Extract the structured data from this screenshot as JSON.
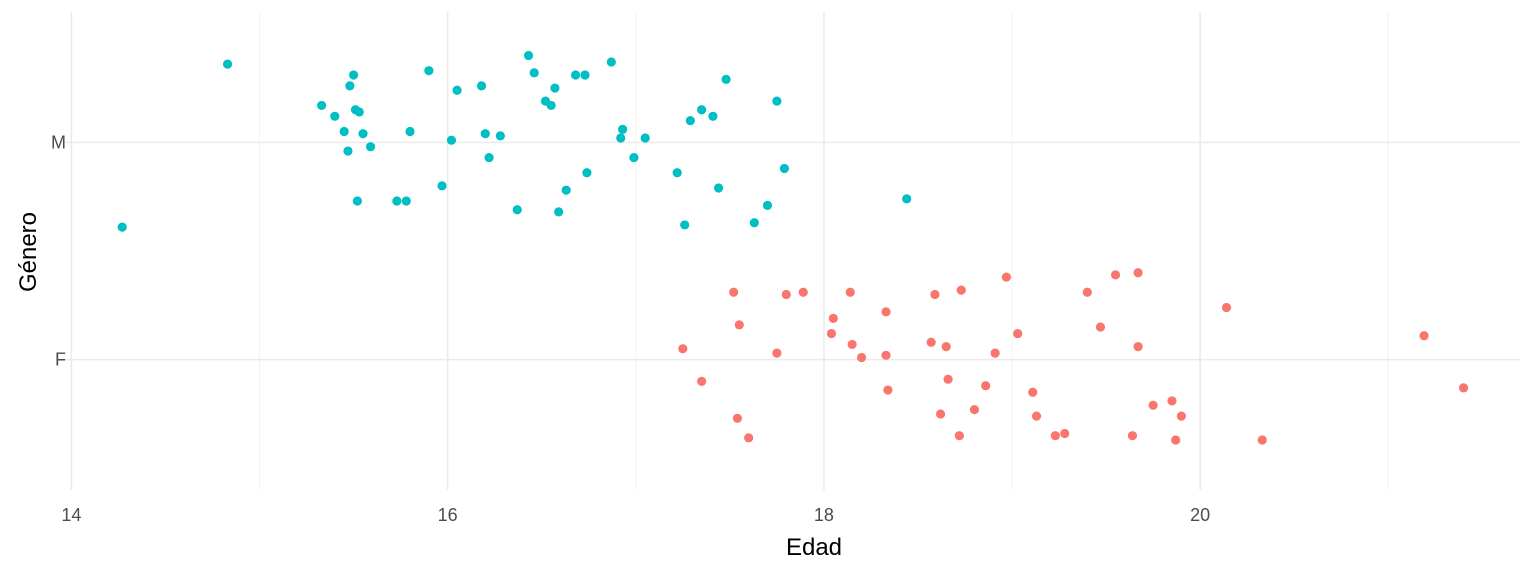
{
  "chart_data": {
    "type": "scatter",
    "title": "",
    "xlabel": "Edad",
    "ylabel": "Género",
    "xlim": [
      13.95,
      21.7
    ],
    "ylim": [
      0.4,
      2.6
    ],
    "x_ticks": [
      14,
      16,
      18,
      20
    ],
    "x_tick_labels": [
      "14",
      "16",
      "18",
      "20"
    ],
    "y_ticks": [
      1,
      2
    ],
    "y_tick_labels": [
      "F",
      "M"
    ],
    "grid": true,
    "legend": "none",
    "series": [
      {
        "color": "#00BFC4",
        "category": "M",
        "points": [
          [
            14.27,
            1.61
          ],
          [
            14.83,
            2.36
          ],
          [
            15.33,
            2.17
          ],
          [
            15.4,
            2.12
          ],
          [
            15.45,
            2.05
          ],
          [
            15.47,
            1.96
          ],
          [
            15.48,
            2.26
          ],
          [
            15.5,
            2.31
          ],
          [
            15.51,
            2.15
          ],
          [
            15.52,
            1.73
          ],
          [
            15.53,
            2.14
          ],
          [
            15.55,
            2.04
          ],
          [
            15.59,
            1.98
          ],
          [
            15.73,
            1.73
          ],
          [
            15.78,
            1.73
          ],
          [
            15.8,
            2.05
          ],
          [
            15.9,
            2.33
          ],
          [
            15.97,
            1.8
          ],
          [
            16.02,
            2.01
          ],
          [
            16.05,
            2.24
          ],
          [
            16.18,
            2.26
          ],
          [
            16.2,
            2.04
          ],
          [
            16.22,
            1.93
          ],
          [
            16.28,
            2.03
          ],
          [
            16.37,
            1.69
          ],
          [
            16.43,
            2.4
          ],
          [
            16.46,
            2.32
          ],
          [
            16.52,
            2.19
          ],
          [
            16.55,
            2.17
          ],
          [
            16.57,
            2.25
          ],
          [
            16.59,
            1.68
          ],
          [
            16.63,
            1.78
          ],
          [
            16.68,
            2.31
          ],
          [
            16.73,
            2.31
          ],
          [
            16.74,
            1.86
          ],
          [
            16.87,
            2.37
          ],
          [
            16.92,
            2.02
          ],
          [
            16.93,
            2.06
          ],
          [
            16.99,
            1.93
          ],
          [
            17.05,
            2.02
          ],
          [
            17.22,
            1.86
          ],
          [
            17.26,
            1.62
          ],
          [
            17.29,
            2.1
          ],
          [
            17.35,
            2.15
          ],
          [
            17.41,
            2.12
          ],
          [
            17.44,
            1.79
          ],
          [
            17.48,
            2.29
          ],
          [
            17.63,
            1.63
          ],
          [
            17.7,
            1.71
          ],
          [
            17.75,
            2.19
          ],
          [
            17.79,
            1.88
          ],
          [
            18.44,
            1.74
          ]
        ]
      },
      {
        "color": "#F8766D",
        "category": "F",
        "points": [
          [
            17.25,
            1.05
          ],
          [
            17.35,
            0.9
          ],
          [
            17.52,
            1.31
          ],
          [
            17.54,
            0.73
          ],
          [
            17.55,
            1.16
          ],
          [
            17.6,
            0.64
          ],
          [
            17.75,
            1.03
          ],
          [
            17.8,
            1.3
          ],
          [
            17.89,
            1.31
          ],
          [
            18.04,
            1.12
          ],
          [
            18.05,
            1.19
          ],
          [
            18.15,
            1.07
          ],
          [
            18.2,
            1.01
          ],
          [
            18.14,
            1.31
          ],
          [
            18.33,
            1.22
          ],
          [
            18.33,
            1.02
          ],
          [
            18.34,
            0.86
          ],
          [
            18.57,
            1.08
          ],
          [
            18.59,
            1.3
          ],
          [
            18.62,
            0.75
          ],
          [
            18.65,
            1.06
          ],
          [
            18.66,
            0.91
          ],
          [
            18.72,
            0.65
          ],
          [
            18.73,
            1.32
          ],
          [
            18.8,
            0.77
          ],
          [
            18.86,
            0.88
          ],
          [
            18.91,
            1.03
          ],
          [
            18.97,
            1.38
          ],
          [
            19.03,
            1.12
          ],
          [
            19.11,
            0.85
          ],
          [
            19.13,
            0.74
          ],
          [
            19.23,
            0.65
          ],
          [
            19.28,
            0.66
          ],
          [
            19.4,
            1.31
          ],
          [
            19.47,
            1.15
          ],
          [
            19.55,
            1.39
          ],
          [
            19.64,
            0.65
          ],
          [
            19.67,
            1.4
          ],
          [
            19.67,
            1.06
          ],
          [
            19.75,
            0.79
          ],
          [
            19.85,
            0.81
          ],
          [
            19.87,
            0.63
          ],
          [
            19.9,
            0.74
          ],
          [
            20.14,
            1.24
          ],
          [
            20.33,
            0.63
          ],
          [
            21.19,
            1.11
          ],
          [
            21.4,
            0.87
          ]
        ]
      }
    ]
  }
}
